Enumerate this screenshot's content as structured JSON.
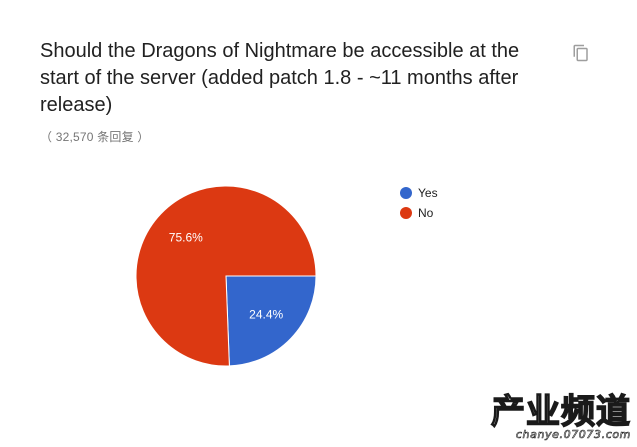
{
  "question": {
    "title": "Should the Dragons of Nightmare be accessible at the start of the server (added patch 1.8 - ~11 months after release)",
    "responses": "（ 32,570 条回复 ）"
  },
  "toolbar": {
    "copy_icon": "copy-icon"
  },
  "chart_data": {
    "type": "pie",
    "title": "Should the Dragons of Nightmare be accessible at the start of the server (added patch 1.8 - ~11 months after release)",
    "categories": [
      "Yes",
      "No"
    ],
    "values": [
      24.4,
      75.6
    ],
    "labels": [
      "24.4%",
      "75.6%"
    ],
    "colors": [
      "#3366cc",
      "#dc3912"
    ],
    "legend": "right"
  },
  "watermark": {
    "main": "产业频道",
    "sub": "chanye.07073.com"
  }
}
